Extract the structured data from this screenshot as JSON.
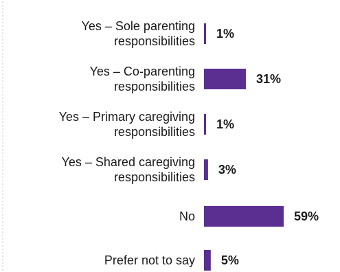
{
  "chart_data": {
    "type": "bar",
    "orientation": "horizontal",
    "categories": [
      [
        "Yes – Sole parenting",
        "responsibilities"
      ],
      [
        "Yes – Co-parenting",
        "responsibilities"
      ],
      [
        "Yes – Primary caregiving",
        "responsibilities"
      ],
      [
        "Yes – Shared caregiving",
        "responsibilities"
      ],
      [
        "No"
      ],
      [
        "Prefer not to say"
      ]
    ],
    "values": [
      1,
      31,
      1,
      3,
      59,
      5
    ],
    "value_labels": [
      "1%",
      "31%",
      "1%",
      "3%",
      "59%",
      "5%"
    ],
    "unit": "%",
    "xlim": [
      0,
      59
    ],
    "bar_color": "#5b2e91",
    "title": "",
    "xlabel": "",
    "ylabel": "",
    "grid": false,
    "legend": "none"
  }
}
